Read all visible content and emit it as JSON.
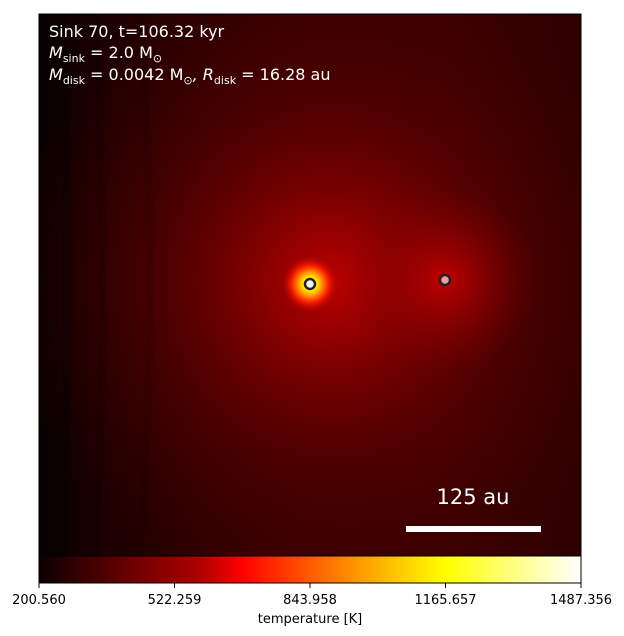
{
  "annotation": {
    "line1": "Sink 70, t=106.32 kyr",
    "line2_label": "M",
    "line2_sub": "sink",
    "line2_value": " = 2.0 M",
    "line2_unit_sub": "⊙",
    "line3_label": "M",
    "line3_sub": "disk",
    "line3_value": " = 0.0042 M",
    "line3_unit_sub": "⊙",
    "line3_sep": ", R",
    "line3_sub2": "disk",
    "line3_value2": " = 16.28 au"
  },
  "scalebar": {
    "label": "125 au"
  },
  "colorbar": {
    "label": "temperature [K]",
    "ticks": [
      "200.560",
      "522.259",
      "843.958",
      "1165.657",
      "1487.356"
    ],
    "min": 200.56,
    "max": 1487.356,
    "colormap": "hot"
  },
  "sinks": [
    {
      "name": "primary",
      "fill": "#f2f2f2"
    },
    {
      "name": "secondary",
      "fill": "#e8a0a0"
    }
  ],
  "colors": {
    "background_dark": "#1a0000",
    "field": "#6e0000",
    "hot_core": "#ffff00",
    "scalebar": "#ffffff"
  }
}
